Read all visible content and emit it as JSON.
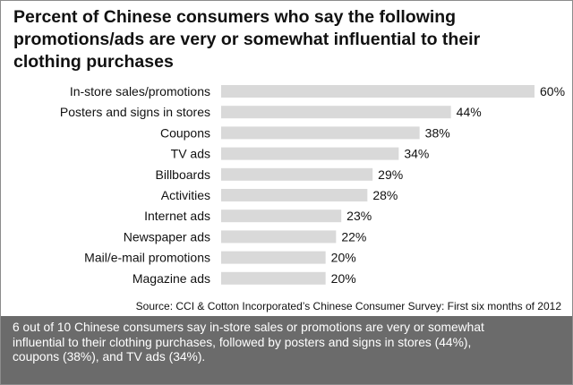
{
  "title_lines": [
    "Percent of Chinese consumers who say the following",
    "promotions/ads are very or somewhat influential to their",
    "clothing purchases"
  ],
  "source": "Source: CCI & Cotton Incorporated’s Chinese Consumer Survey: First six months of 2012",
  "caption_lines": [
    "6 out of 10 Chinese consumers say in-store sales or promotions are very or somewhat",
    "influential to their clothing purchases, followed by posters and signs in stores (44%),",
    "coupons (38%), and TV ads (34%)."
  ],
  "colors": {
    "bar": "#d9d9d9",
    "caption_bg": "#6b6b6b"
  },
  "chart_data": {
    "type": "bar",
    "orientation": "horizontal",
    "categories": [
      "In-store sales/promotions",
      "Posters and signs in stores",
      "Coupons",
      "TV ads",
      "Billboards",
      "Activities",
      "Internet ads",
      "Newspaper ads",
      "Mail/e-mail promotions",
      "Magazine ads"
    ],
    "values": [
      60,
      44,
      38,
      34,
      29,
      28,
      23,
      22,
      20,
      20
    ],
    "value_labels": [
      "60%",
      "44%",
      "38%",
      "34%",
      "29%",
      "28%",
      "23%",
      "22%",
      "20%",
      "20%"
    ],
    "unit": "%",
    "xlim": [
      0,
      60
    ],
    "grid": false,
    "legend": "none"
  }
}
